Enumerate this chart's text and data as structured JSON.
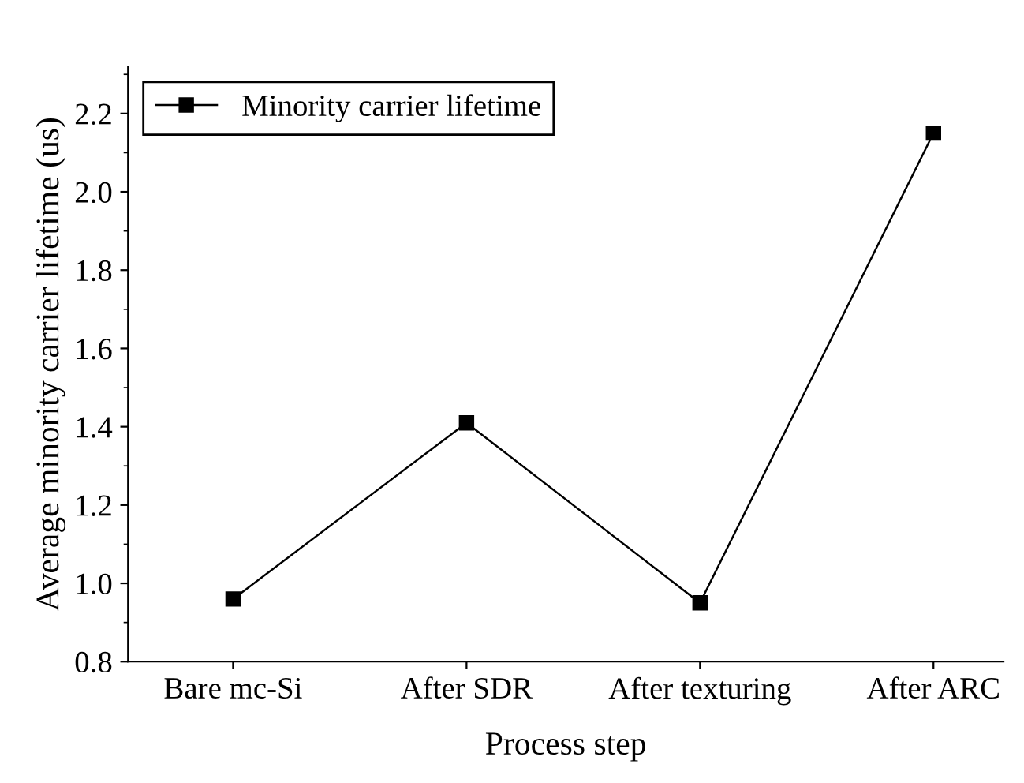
{
  "chart_data": {
    "type": "line",
    "xlabel": "Process step",
    "ylabel": "Average minority carrier lifetime (us)",
    "categories": [
      "Bare mc-Si",
      "After SDR",
      "After texturing",
      "After ARC"
    ],
    "series": [
      {
        "name": "Minority carrier lifetime",
        "color": "#000000",
        "values": [
          0.96,
          1.41,
          0.95,
          2.15
        ]
      }
    ],
    "ylim": [
      0.8,
      2.32
    ],
    "yticks": [
      0.8,
      {
        "value": 1,
        "label": "1.0"
      },
      1.2,
      1.4,
      1.6,
      1.8,
      {
        "value": 2,
        "label": "2.0"
      },
      2.2
    ],
    "marker": "square",
    "line_style": "solid",
    "grid": false,
    "legend": "top left"
  }
}
